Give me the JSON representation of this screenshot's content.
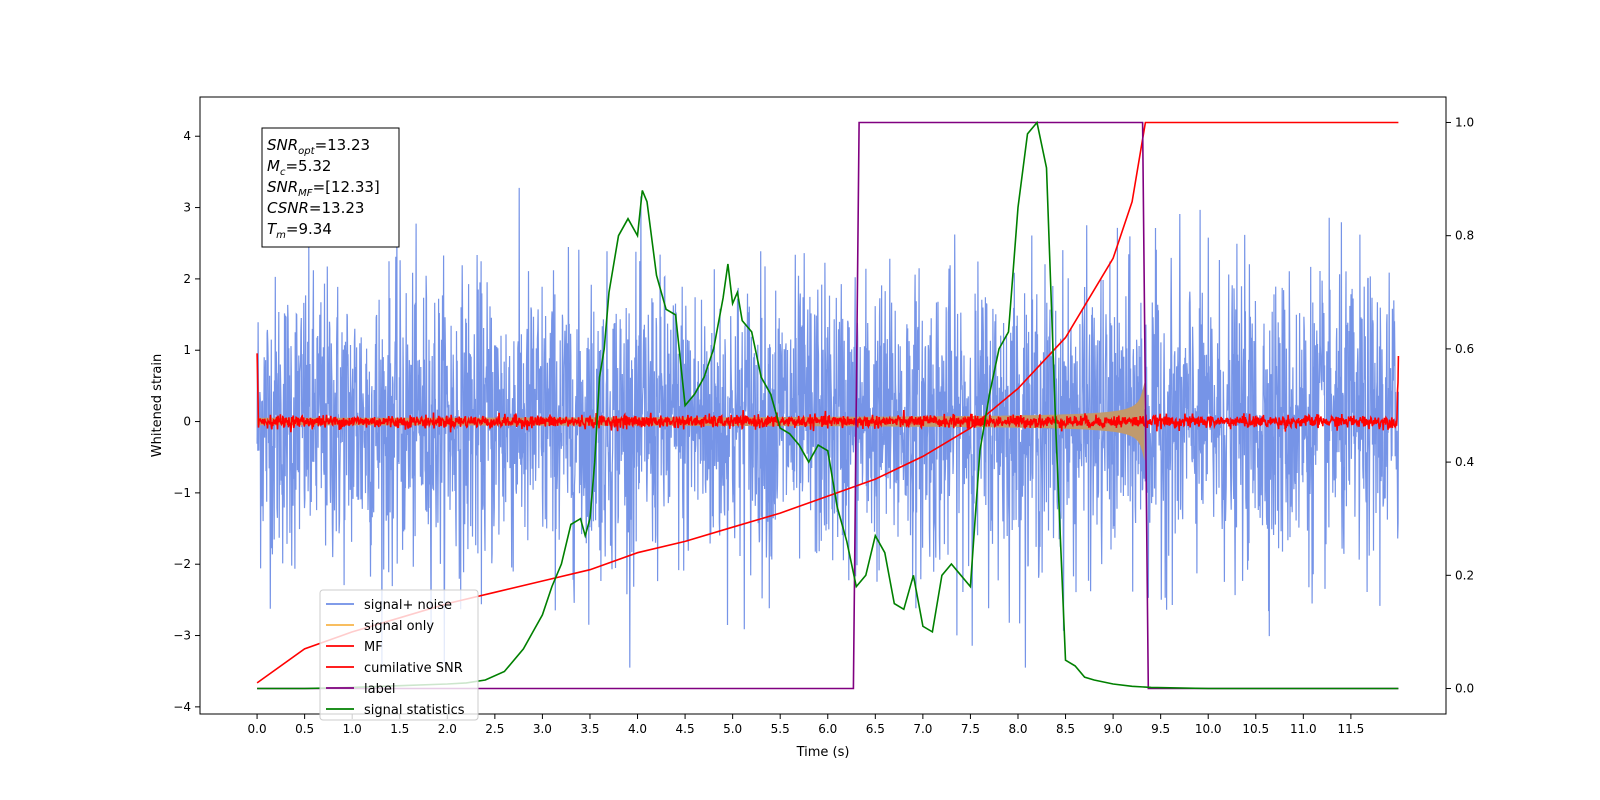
{
  "chart_data": {
    "type": "line",
    "xlabel": "Time (s)",
    "ylabel": "Whitened strain",
    "xlim": [
      -0.6,
      12.5
    ],
    "ylim": [
      -4.1,
      4.55
    ],
    "y2lim": [
      -0.045,
      1.045
    ],
    "x_ticks": [
      "0.0",
      "0.5",
      "1.0",
      "1.5",
      "2.0",
      "2.5",
      "3.0",
      "3.5",
      "4.0",
      "4.5",
      "5.0",
      "5.5",
      "6.0",
      "6.5",
      "7.0",
      "7.5",
      "8.0",
      "8.5",
      "9.0",
      "9.5",
      "10.0",
      "10.5",
      "11.0",
      "11.5"
    ],
    "y_ticks": [
      -4,
      -3,
      -2,
      -1,
      0,
      1,
      2,
      3,
      4
    ],
    "y2_ticks": [
      "0.0",
      "0.2",
      "0.4",
      "0.6",
      "0.8",
      "1.0"
    ],
    "grid": false,
    "legend_position": "lower-left",
    "colors": {
      "signal_noise": "#6f8ee6",
      "signal_only": "#f7b54a",
      "signal_only_fill": "#c09a6e",
      "mf": "#ff0000",
      "cumulative_snr": "#ff0000",
      "label": "#800080",
      "signal_statistics": "#008000"
    },
    "series": [
      {
        "name": "signal+ noise",
        "axis": "left",
        "x_range": [
          0.0,
          12.0
        ],
        "amplitude_envelope": [
          -2.4,
          2.4
        ],
        "max": 4.15,
        "min": -3.65
      },
      {
        "name": "signal only",
        "axis": "left",
        "x_range": [
          0.0,
          9.34
        ],
        "envelope_peak": 0.92
      },
      {
        "name": "MF",
        "axis": "left",
        "x_range": [
          0.0,
          12.0
        ],
        "start_value": 1.0,
        "end_value": 0.9
      },
      {
        "name": "cumilative SNR",
        "axis": "right",
        "x": [
          0.0,
          0.5,
          1.0,
          1.5,
          2.0,
          2.5,
          3.0,
          3.5,
          4.0,
          4.5,
          5.0,
          5.5,
          6.0,
          6.5,
          7.0,
          7.5,
          8.0,
          8.5,
          9.0,
          9.2,
          9.34,
          12.0
        ],
        "values": [
          0.01,
          0.07,
          0.1,
          0.125,
          0.15,
          0.17,
          0.19,
          0.21,
          0.24,
          0.26,
          0.285,
          0.31,
          0.34,
          0.37,
          0.41,
          0.46,
          0.53,
          0.62,
          0.76,
          0.86,
          1.0,
          1.0
        ]
      },
      {
        "name": "label",
        "axis": "right",
        "x": [
          0.0,
          6.27,
          6.33,
          9.31,
          9.37,
          12.0
        ],
        "values": [
          0.0,
          0.0,
          1.0,
          1.0,
          0.0,
          0.0
        ]
      },
      {
        "name": "signal statistics",
        "axis": "right",
        "x": [
          0.0,
          0.5,
          1.0,
          1.5,
          2.0,
          2.2,
          2.4,
          2.6,
          2.8,
          2.9,
          3.0,
          3.1,
          3.2,
          3.3,
          3.4,
          3.45,
          3.5,
          3.55,
          3.6,
          3.65,
          3.7,
          3.8,
          3.9,
          4.0,
          4.05,
          4.1,
          4.2,
          4.3,
          4.4,
          4.5,
          4.6,
          4.7,
          4.8,
          4.9,
          4.95,
          5.0,
          5.05,
          5.1,
          5.2,
          5.3,
          5.4,
          5.5,
          5.6,
          5.7,
          5.8,
          5.9,
          6.0,
          6.1,
          6.2,
          6.3,
          6.4,
          6.5,
          6.6,
          6.7,
          6.8,
          6.9,
          7.0,
          7.1,
          7.2,
          7.3,
          7.4,
          7.5,
          7.6,
          7.7,
          7.8,
          7.9,
          8.0,
          8.1,
          8.2,
          8.3,
          8.4,
          8.5,
          8.6,
          8.7,
          8.8,
          9.0,
          9.2,
          9.4,
          10.0,
          11.0,
          12.0
        ],
        "values": [
          0.0,
          0.0,
          0.002,
          0.005,
          0.008,
          0.01,
          0.015,
          0.03,
          0.07,
          0.1,
          0.13,
          0.18,
          0.22,
          0.29,
          0.3,
          0.27,
          0.3,
          0.4,
          0.55,
          0.6,
          0.7,
          0.8,
          0.83,
          0.8,
          0.88,
          0.86,
          0.73,
          0.67,
          0.66,
          0.5,
          0.52,
          0.55,
          0.6,
          0.69,
          0.75,
          0.68,
          0.7,
          0.65,
          0.63,
          0.55,
          0.52,
          0.46,
          0.45,
          0.43,
          0.4,
          0.43,
          0.42,
          0.32,
          0.26,
          0.18,
          0.2,
          0.27,
          0.24,
          0.15,
          0.14,
          0.2,
          0.11,
          0.1,
          0.2,
          0.22,
          0.2,
          0.18,
          0.42,
          0.52,
          0.6,
          0.63,
          0.85,
          0.98,
          1.0,
          0.92,
          0.45,
          0.05,
          0.04,
          0.02,
          0.015,
          0.008,
          0.004,
          0.002,
          0.0,
          0.0,
          0.0
        ]
      }
    ],
    "annotations": [
      {
        "main": "SNR",
        "sub": "opt",
        "rest": "=13.23"
      },
      {
        "main": "M",
        "sub": "c",
        "rest": "=5.32"
      },
      {
        "main": "SNR",
        "sub": "MF",
        "rest": "=[12.33]"
      },
      {
        "main": "CSNR",
        "sub": "",
        "rest": "=13.23"
      },
      {
        "main": "T",
        "sub": "m",
        "rest": "=9.34"
      }
    ]
  }
}
